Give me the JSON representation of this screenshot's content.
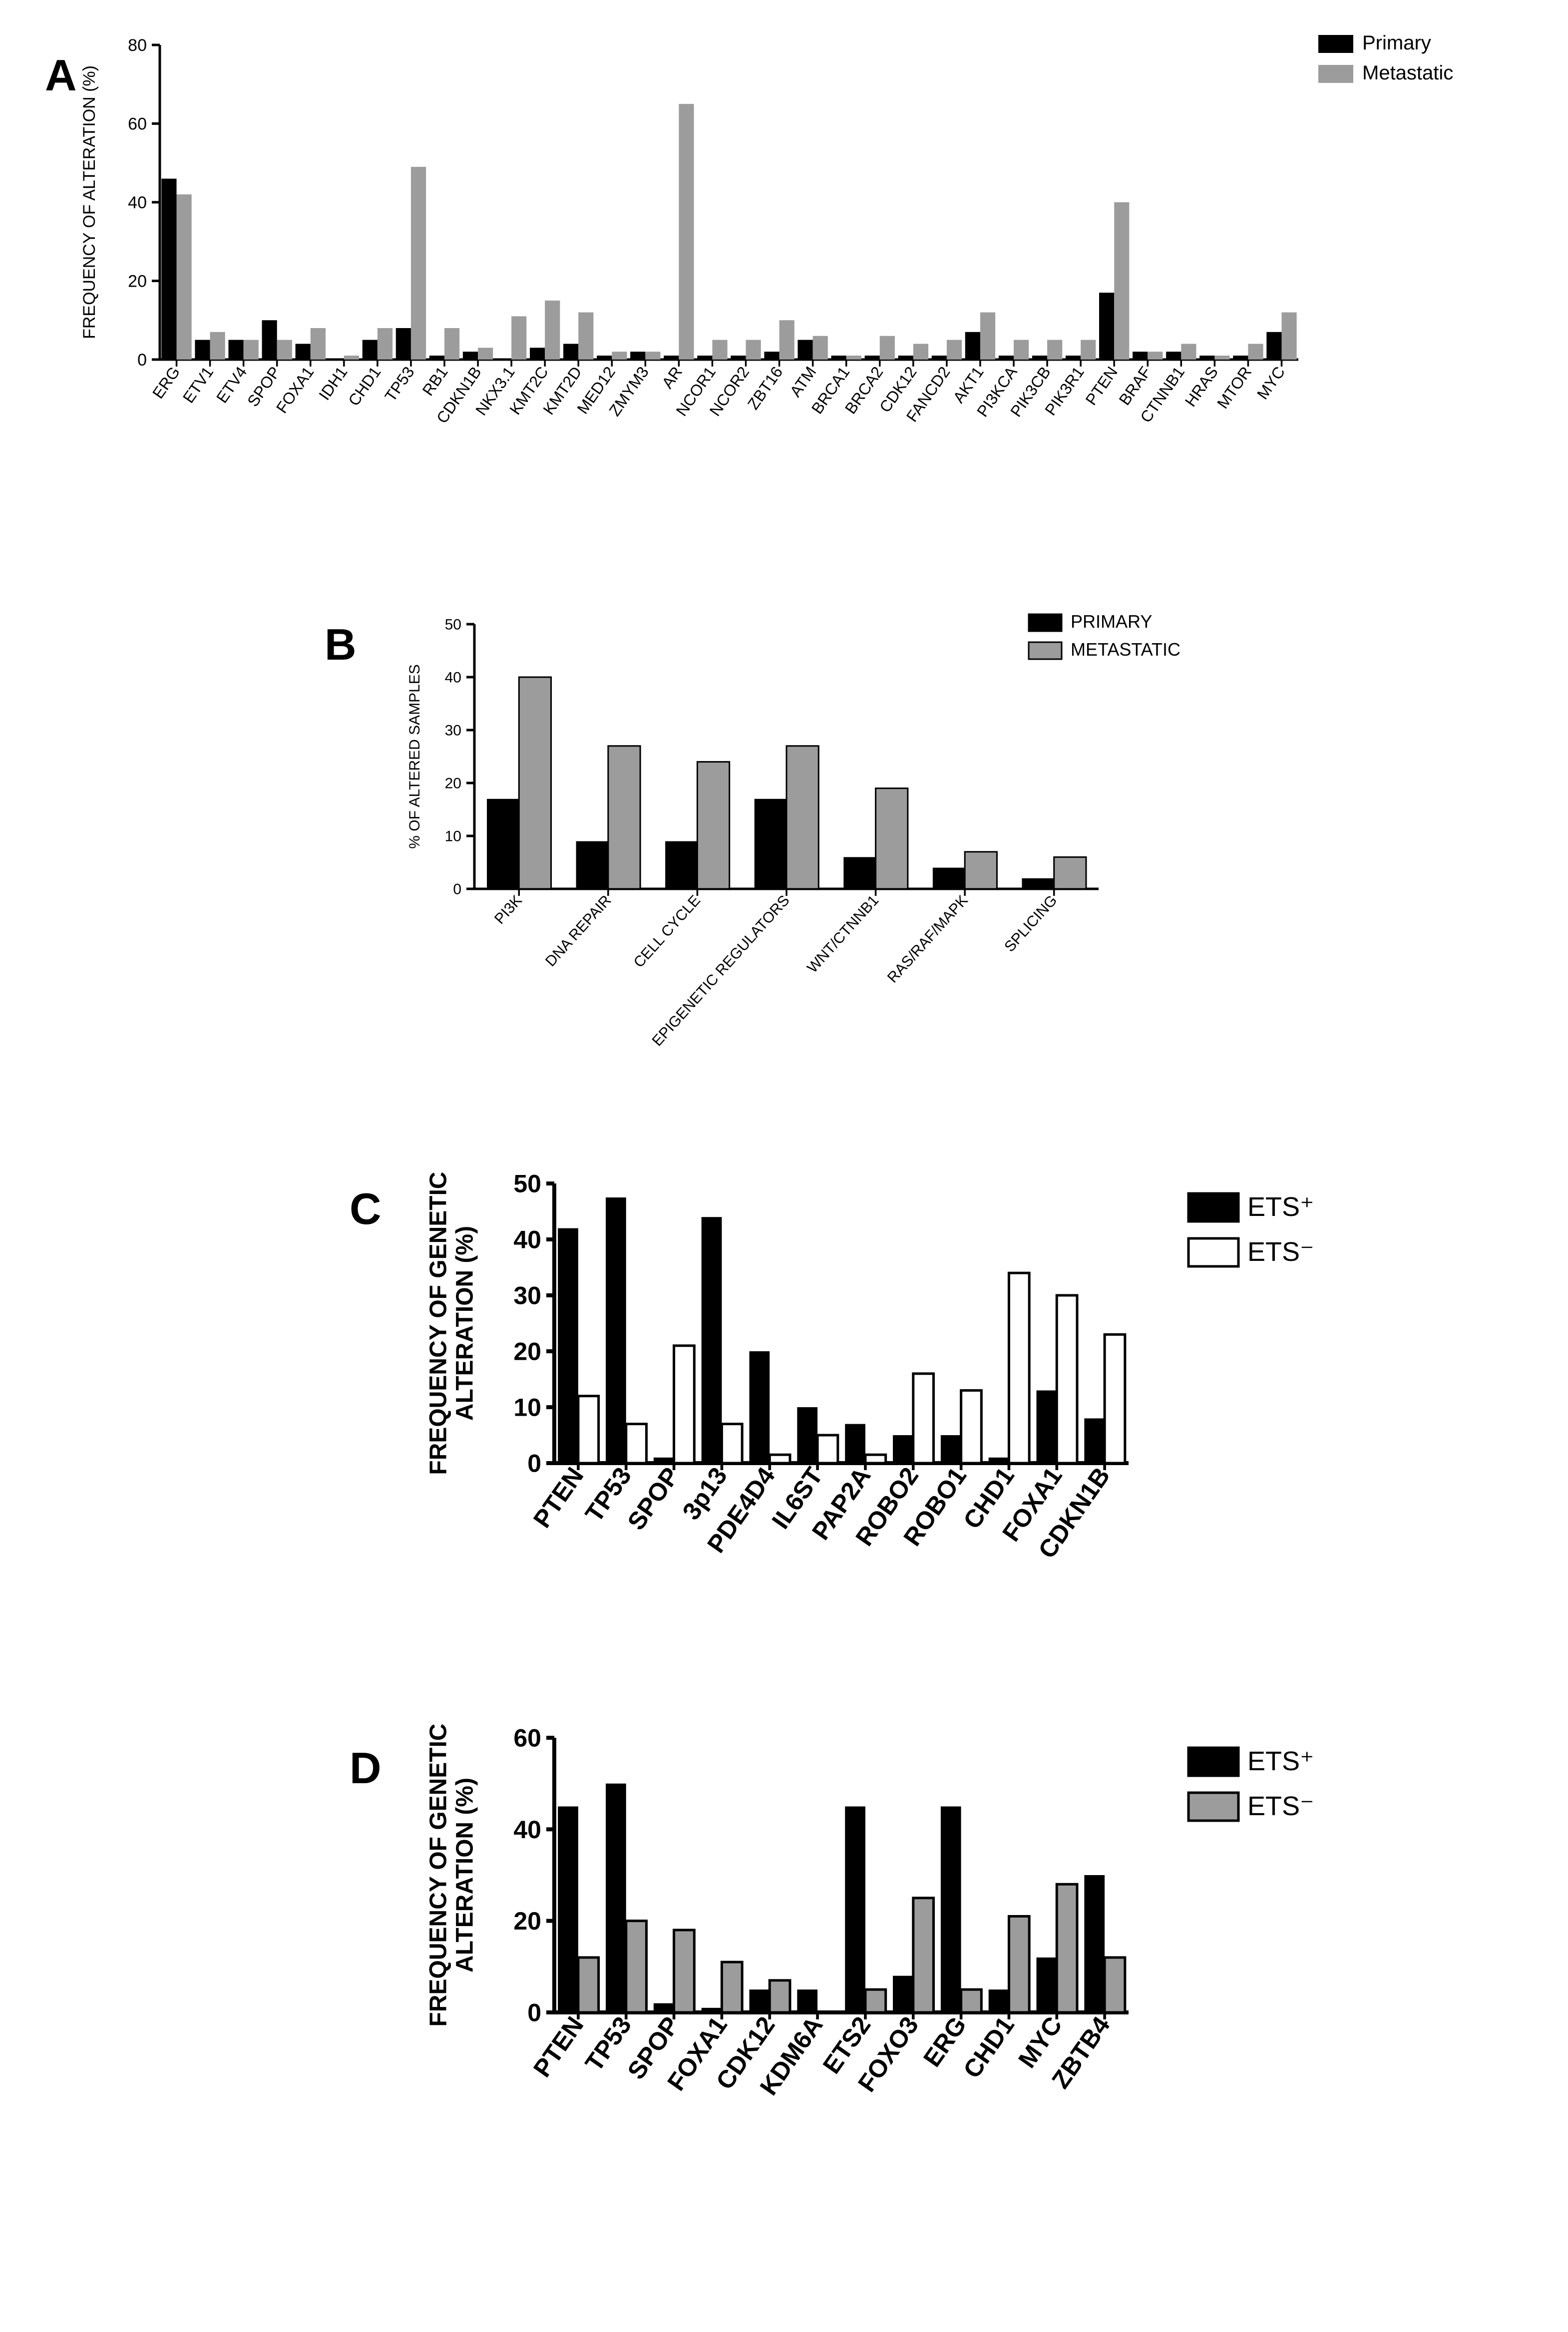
{
  "colors": {
    "black": "#000000",
    "gray": "#9c9c9c",
    "gray_outline": "#000000",
    "background": "#ffffff"
  },
  "typography": {
    "panel_label_fontsize": 88,
    "axis_label_fontsize": 38,
    "tick_fontsize": 32,
    "legend_fontsize": 40,
    "tick_fontsize_big": 48
  },
  "panelA": {
    "label": "A",
    "type": "grouped-bar",
    "ylabel": "FREQUENCY OF ALTERATION (%)",
    "ylim": [
      0,
      80
    ],
    "ytick_step": 20,
    "legend": [
      {
        "label": "Primary",
        "swatch_fill": "#000000",
        "swatch_stroke": "#000000"
      },
      {
        "label": "Metastatic",
        "swatch_fill": "#9c9c9c",
        "swatch_stroke": "#9c9c9c"
      }
    ],
    "categories": [
      "ERG",
      "ETV1",
      "ETV4",
      "SPOP",
      "FOXA1",
      "IDH1",
      "CHD1",
      "TP53",
      "RB1",
      "CDKN1B",
      "NKX3.1",
      "KMT2C",
      "KMT2D",
      "MED12",
      "ZMYM3",
      "AR",
      "NCOR1",
      "NCOR2",
      "ZBT16",
      "ATM",
      "BRCA1",
      "BRCA2",
      "CDK12",
      "FANCD2",
      "AKT1",
      "PI3KCA",
      "PIK3CB",
      "PIK3R1",
      "PTEN",
      "BRAF",
      "CTNNB1",
      "HRAS",
      "MTOR",
      "MYC"
    ],
    "series": [
      {
        "name": "Primary",
        "color": "#000000",
        "values": [
          46,
          5,
          5,
          10,
          4,
          0,
          5,
          8,
          1,
          2,
          0,
          3,
          4,
          1,
          2,
          1,
          1,
          1,
          2,
          5,
          1,
          1,
          1,
          1,
          7,
          1,
          1,
          1,
          17,
          2,
          2,
          1,
          1,
          7
        ]
      },
      {
        "name": "Metastatic",
        "color": "#9c9c9c",
        "values": [
          42,
          7,
          5,
          5,
          8,
          1,
          8,
          49,
          8,
          3,
          11,
          15,
          12,
          2,
          2,
          65,
          5,
          5,
          10,
          6,
          1,
          6,
          4,
          5,
          12,
          5,
          5,
          5,
          40,
          2,
          4,
          1,
          4,
          12
        ]
      }
    ],
    "bar_width": 0.9
  },
  "panelB": {
    "label": "B",
    "type": "grouped-bar",
    "ylabel": "% OF ALTERED SAMPLES",
    "ylim": [
      0,
      50
    ],
    "ytick_step": 10,
    "legend": [
      {
        "label": "PRIMARY",
        "swatch_fill": "#000000",
        "swatch_stroke": "#000000"
      },
      {
        "label": "METASTATIC",
        "swatch_fill": "#9c9c9c",
        "swatch_stroke": "#000000"
      }
    ],
    "categories": [
      "PI3K",
      "DNA REPAIR",
      "CELL CYCLE",
      "EPIGENETIC REGULATORS",
      "WNT/CTNNB1",
      "RAS/RAF/MAPK",
      "SPLICING"
    ],
    "series": [
      {
        "name": "PRIMARY",
        "fill": "#000000",
        "stroke": "#000000",
        "stroke_w": 0,
        "values": [
          17,
          9,
          9,
          17,
          6,
          4,
          2
        ]
      },
      {
        "name": "METASTATIC",
        "fill": "#9c9c9c",
        "stroke": "#000000",
        "stroke_w": 3,
        "values": [
          40,
          27,
          24,
          27,
          19,
          7,
          6
        ]
      }
    ],
    "bar_width": 0.72
  },
  "panelC": {
    "label": "C",
    "type": "grouped-bar",
    "ylabel": "FREQUENCY OF GENETIC\nALTERATION (%)",
    "ylim": [
      0,
      50
    ],
    "ytick_step": 10,
    "legend": [
      {
        "label": "ETS⁺",
        "swatch_fill": "#000000",
        "swatch_stroke": "#000000"
      },
      {
        "label": "ETS⁻",
        "swatch_fill": "#ffffff",
        "swatch_stroke": "#000000"
      }
    ],
    "categories": [
      "PTEN",
      "TP53",
      "SPOP",
      "3p13",
      "PDE4D4",
      "IL6ST",
      "PAP2A",
      "ROBO2",
      "ROBO1",
      "CHD1",
      "FOXA1",
      "CDKN1B"
    ],
    "series": [
      {
        "name": "ETS+",
        "fill": "#000000",
        "stroke": "#000000",
        "stroke_w": 0,
        "values": [
          42,
          47.5,
          1,
          44,
          20,
          10,
          7,
          5,
          5,
          1,
          13,
          8
        ]
      },
      {
        "name": "ETS-",
        "fill": "#ffffff",
        "stroke": "#000000",
        "stroke_w": 5,
        "values": [
          12,
          7,
          21,
          7,
          1.5,
          5,
          1.5,
          16,
          13,
          34,
          30,
          23
        ]
      }
    ],
    "bar_width": 0.85
  },
  "panelD": {
    "label": "D",
    "type": "grouped-bar",
    "ylabel": "FREQUENCY OF GENETIC\nALTERATION (%)",
    "ylim": [
      0,
      60
    ],
    "ytick_step": 20,
    "legend": [
      {
        "label": "ETS⁺",
        "swatch_fill": "#000000",
        "swatch_stroke": "#000000"
      },
      {
        "label": "ETS⁻",
        "swatch_fill": "#9c9c9c",
        "swatch_stroke": "#000000"
      }
    ],
    "categories": [
      "PTEN",
      "TP53",
      "SPOP",
      "FOXA1",
      "CDK12",
      "KDM6A",
      "ETS2",
      "FOXO3",
      "ERG",
      "CHD1",
      "MYC",
      "ZBTB4"
    ],
    "series": [
      {
        "name": "ETS+",
        "fill": "#000000",
        "stroke": "#000000",
        "stroke_w": 0,
        "values": [
          45,
          50,
          2,
          1,
          5,
          5,
          45,
          8,
          45,
          5,
          12,
          30
        ]
      },
      {
        "name": "ETS-",
        "fill": "#9c9c9c",
        "stroke": "#000000",
        "stroke_w": 5,
        "values": [
          12,
          20,
          18,
          11,
          7,
          0,
          5,
          25,
          5,
          21,
          28,
          12
        ]
      }
    ],
    "bar_width": 0.85
  }
}
